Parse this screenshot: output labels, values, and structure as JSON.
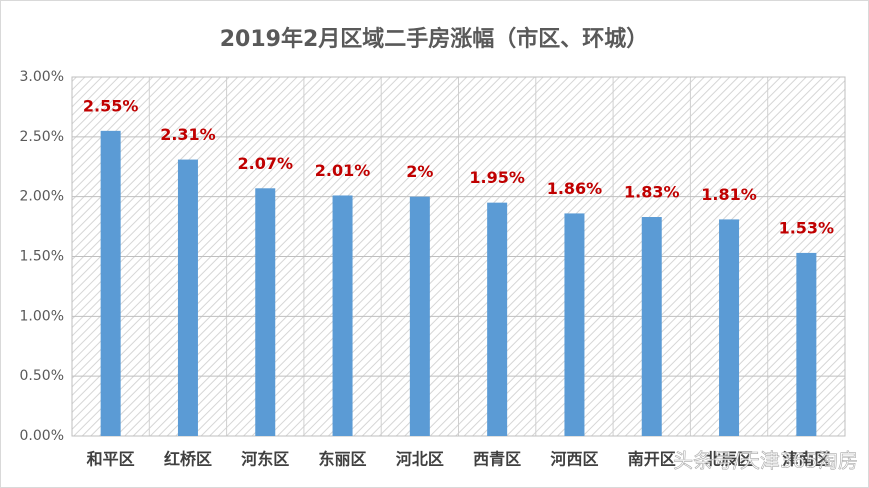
{
  "chart_data": {
    "type": "bar",
    "title": "2019年2月区域二手房涨幅（市区、环城）",
    "categories": [
      "和平区",
      "红桥区",
      "河东区",
      "东丽区",
      "河北区",
      "西青区",
      "河西区",
      "南开区",
      "北辰区",
      "津南区"
    ],
    "values": [
      2.55,
      2.31,
      2.07,
      2.01,
      2,
      1.95,
      1.86,
      1.83,
      1.81,
      1.53
    ],
    "value_labels": [
      "2.55%",
      "2.31%",
      "2.07%",
      "2.01%",
      "2%",
      "1.95%",
      "1.86%",
      "1.83%",
      "1.81%",
      "1.53%"
    ],
    "color": "#5b9bd5",
    "label_color": "#c00000",
    "ylim": [
      0,
      3
    ],
    "yticks": [
      {
        "value": 0,
        "label": "0.00%"
      },
      {
        "value": 0.5,
        "label": "0.50%"
      },
      {
        "value": 1,
        "label": "1.00%"
      },
      {
        "value": 1.5,
        "label": "1.50%"
      },
      {
        "value": 2,
        "label": "2.00%"
      },
      {
        "value": 2.5,
        "label": "2.50%"
      },
      {
        "value": 3,
        "label": "3.00%"
      }
    ],
    "grid": true,
    "watermark": "头条号/天津365淘房"
  }
}
